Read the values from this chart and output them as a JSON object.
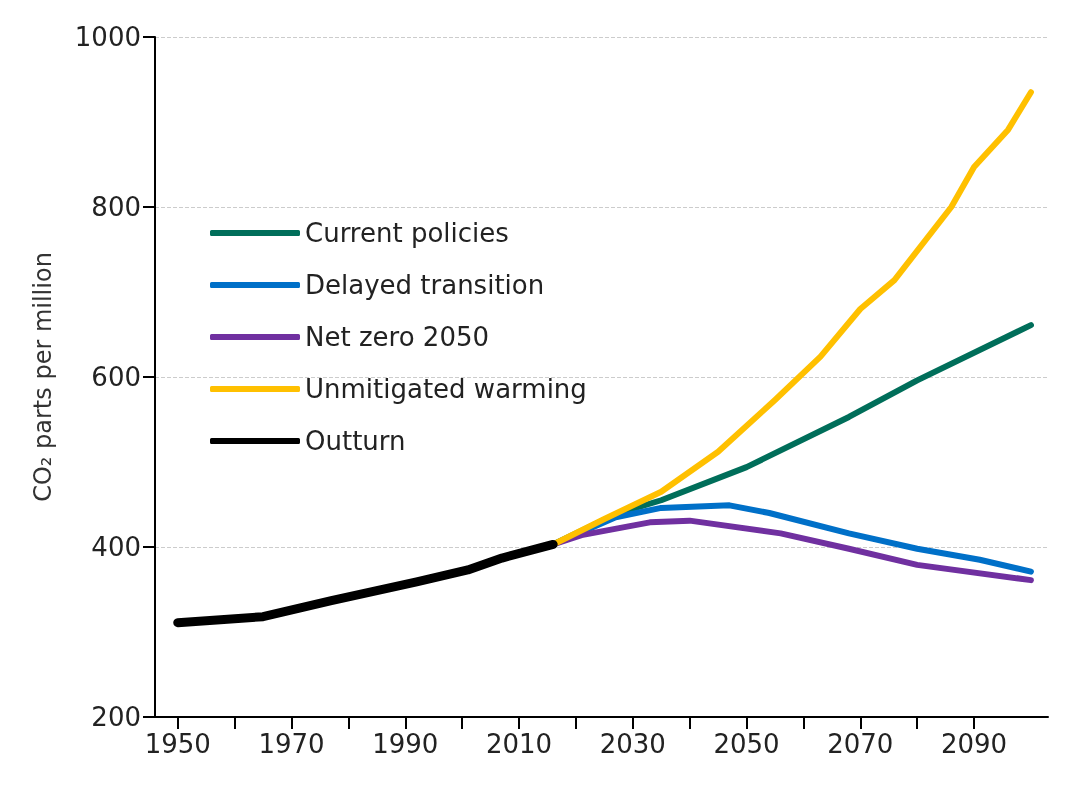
{
  "chart_data": {
    "type": "line",
    "ylabel": "CO₂ parts per million",
    "xlim": [
      1946,
      2103
    ],
    "ylim": [
      200,
      1000
    ],
    "xticks": [
      1950,
      {
        "value": 1960,
        "label": null
      },
      1970,
      {
        "value": 1980,
        "label": null
      },
      1990,
      {
        "value": 2000,
        "label": null
      },
      2010,
      {
        "value": 2020,
        "label": null
      },
      2030,
      {
        "value": 2040,
        "label": null
      },
      2050,
      {
        "value": 2060,
        "label": null
      },
      2070,
      {
        "value": 2080,
        "label": null
      },
      2090
    ],
    "yticks": [
      200,
      400,
      600,
      800,
      1000
    ],
    "grid": "y",
    "legend": "top left",
    "marker": "none",
    "line_style": "solid",
    "series": [
      {
        "name": "Current policies",
        "color": "#006e5a",
        "x": [
          2016,
          2025,
          2030,
          2035,
          2050,
          2068,
          2080,
          2100
        ],
        "values": [
          403,
          432,
          445,
          455,
          494,
          553,
          596,
          661
        ]
      },
      {
        "name": "Delayed transition",
        "color": "#0070c8",
        "x": [
          2016,
          2027,
          2035,
          2047,
          2054,
          2068,
          2080,
          2091,
          2100
        ],
        "values": [
          403,
          435,
          446,
          449,
          440,
          416,
          398,
          385,
          371
        ]
      },
      {
        "name": "Net zero 2050",
        "color": "#7030a0",
        "x": [
          2016,
          2021,
          2033,
          2040,
          2056,
          2068,
          2080,
          2100
        ],
        "values": [
          403,
          414,
          429,
          431,
          416,
          398,
          379,
          361
        ]
      },
      {
        "name": "Unmitigated warming",
        "color": "#ffc000",
        "x": [
          2016,
          2025,
          2035,
          2045,
          2055,
          2063,
          2070,
          2076,
          2086,
          2090,
          2096,
          2100
        ],
        "values": [
          403,
          433,
          465,
          512,
          573,
          624,
          680,
          714,
          800,
          847,
          891,
          935
        ]
      },
      {
        "name": "Outturn",
        "color": "#000000",
        "x": [
          1950,
          1965,
          1977,
          1992,
          2001,
          2007,
          2016
        ],
        "values": [
          311,
          318,
          337,
          359,
          373,
          387,
          403
        ]
      }
    ]
  }
}
